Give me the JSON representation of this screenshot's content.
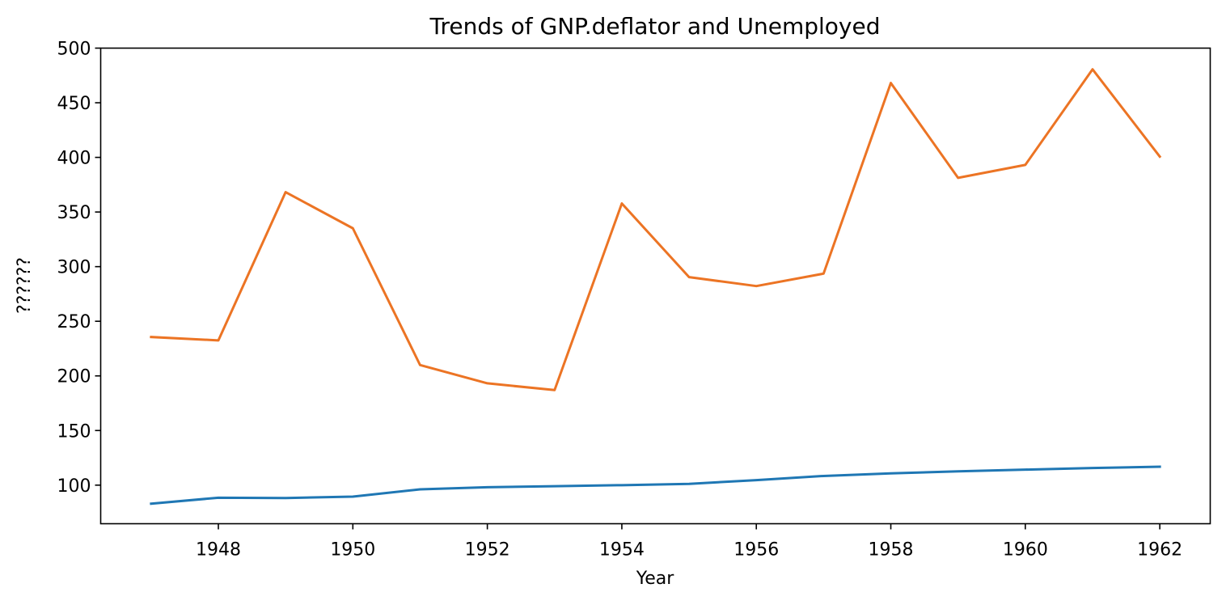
{
  "chart_data": {
    "type": "line",
    "title": "Trends of GNP.deflator and Unemployed",
    "xlabel": "Year",
    "ylabel": "??????",
    "x": [
      1947,
      1948,
      1949,
      1950,
      1951,
      1952,
      1953,
      1954,
      1955,
      1956,
      1957,
      1958,
      1959,
      1960,
      1961,
      1962
    ],
    "xlim": [
      1946.25,
      1962.75
    ],
    "ylim": [
      64.7,
      500
    ],
    "x_ticks": [
      1948,
      1950,
      1952,
      1954,
      1956,
      1958,
      1960,
      1962
    ],
    "y_ticks": [
      100,
      150,
      200,
      250,
      300,
      350,
      400,
      450,
      500
    ],
    "grid": false,
    "series": [
      {
        "name": "GNP.deflator",
        "color": "#1f77b4",
        "values": [
          83.0,
          88.5,
          88.2,
          89.5,
          96.2,
          98.1,
          99.0,
          100.0,
          101.2,
          104.6,
          108.4,
          110.8,
          112.6,
          114.2,
          115.7,
          116.9
        ]
      },
      {
        "name": "Unemployed",
        "color": "#ec7424",
        "values": [
          235.6,
          232.5,
          368.2,
          335.1,
          209.9,
          193.2,
          187.0,
          357.8,
          290.4,
          282.2,
          293.6,
          468.1,
          381.3,
          393.1,
          480.6,
          400.7
        ]
      }
    ]
  }
}
